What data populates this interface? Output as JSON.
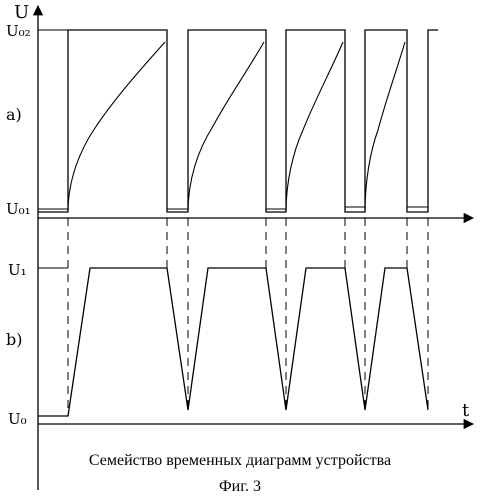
{
  "figure": {
    "caption": "Семейство временных диаграмм устройства",
    "fig_number": "Фиг. 3"
  },
  "axes": {
    "y_label": "U",
    "x_label": "t"
  },
  "panel_a": {
    "label": "a)",
    "level_high": "U₀₂",
    "level_low": "U₀₁"
  },
  "panel_b": {
    "label": "b)",
    "level_high": "U₁",
    "level_low": "U₀"
  }
}
